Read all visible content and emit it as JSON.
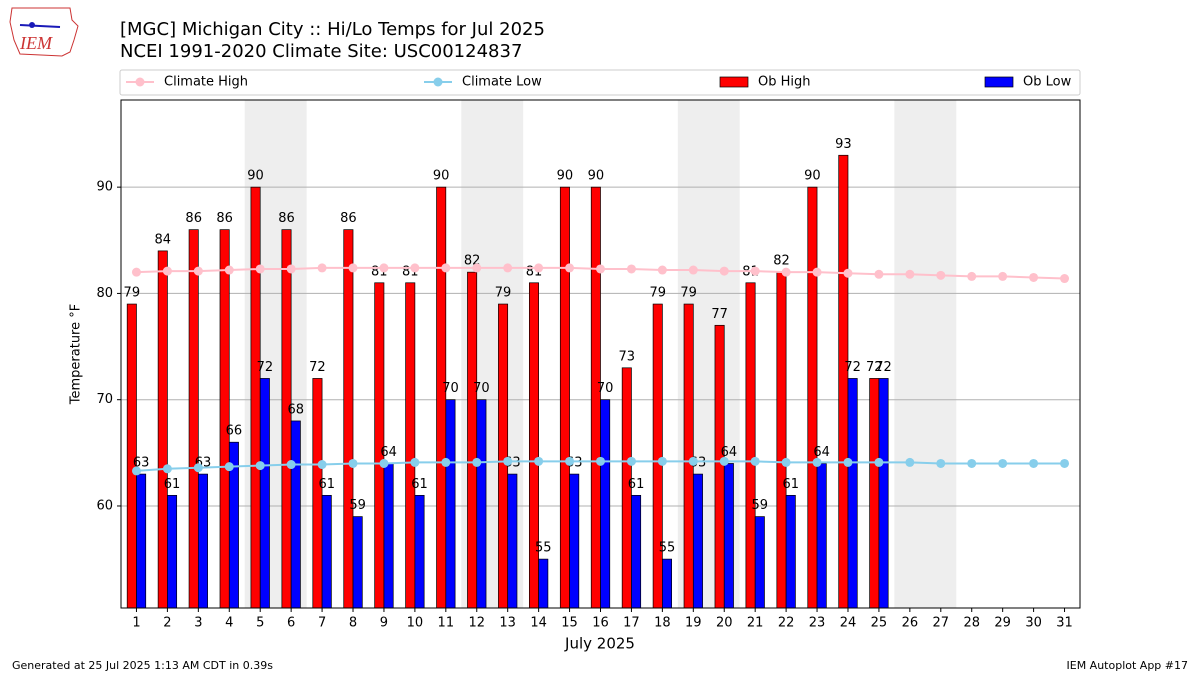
{
  "chart_data": {
    "type": "bar",
    "title": "[MGC] Michigan City :: Hi/Lo Temps for Jul 2025",
    "subtitle": "NCEI 1991-2020 Climate Site: USC00124837",
    "logo": "IEM",
    "xlabel": "July 2025",
    "ylabel": "Temperature °F",
    "footer_left": "Generated at 25 Jul 2025 1:13 AM CDT in 0.39s",
    "footer_right": "IEM Autoplot App #17",
    "x": [
      1,
      2,
      3,
      4,
      5,
      6,
      7,
      8,
      9,
      10,
      11,
      12,
      13,
      14,
      15,
      16,
      17,
      18,
      19,
      20,
      21,
      22,
      23,
      24,
      25,
      26,
      27,
      28,
      29,
      30,
      31
    ],
    "xlim": [
      0.5,
      31.5
    ],
    "xticks": [
      1,
      2,
      3,
      4,
      5,
      6,
      7,
      8,
      9,
      10,
      11,
      12,
      13,
      14,
      15,
      16,
      17,
      18,
      19,
      20,
      21,
      22,
      23,
      24,
      25,
      26,
      27,
      28,
      29,
      30,
      31
    ],
    "ylim": [
      50.4,
      98.2
    ],
    "yticks": [
      60,
      70,
      80,
      90
    ],
    "grid": true,
    "weekend_shading": [
      5,
      12,
      19,
      26
    ],
    "series": [
      {
        "name": "Climate High",
        "kind": "line",
        "color": "#ffc0cb",
        "values": [
          82.0,
          82.1,
          82.1,
          82.2,
          82.3,
          82.3,
          82.4,
          82.4,
          82.4,
          82.4,
          82.4,
          82.4,
          82.4,
          82.4,
          82.4,
          82.3,
          82.3,
          82.2,
          82.2,
          82.1,
          82.1,
          82.0,
          82.0,
          81.9,
          81.8,
          81.8,
          81.7,
          81.6,
          81.6,
          81.5,
          81.4
        ]
      },
      {
        "name": "Climate Low",
        "kind": "line",
        "color": "#87ceeb",
        "values": [
          63.3,
          63.5,
          63.6,
          63.7,
          63.8,
          63.9,
          63.9,
          64.0,
          64.0,
          64.1,
          64.1,
          64.1,
          64.2,
          64.2,
          64.2,
          64.2,
          64.2,
          64.2,
          64.2,
          64.2,
          64.2,
          64.1,
          64.1,
          64.1,
          64.1,
          64.1,
          64.0,
          64.0,
          64.0,
          64.0,
          64.0
        ]
      },
      {
        "name": "Ob High",
        "kind": "bar",
        "color": "#ff0000",
        "values": [
          79,
          84,
          86,
          86,
          90,
          86,
          72,
          86,
          81,
          81,
          90,
          82,
          79,
          81,
          90,
          90,
          73,
          79,
          79,
          77,
          81,
          82,
          90,
          93,
          72,
          null,
          null,
          null,
          null,
          null,
          null
        ]
      },
      {
        "name": "Ob Low",
        "kind": "bar",
        "color": "#0000ff",
        "values": [
          63,
          61,
          63,
          66,
          72,
          68,
          61,
          59,
          64,
          61,
          70,
          70,
          63,
          55,
          63,
          70,
          61,
          55,
          63,
          64,
          59,
          61,
          64,
          72,
          72,
          null,
          null,
          null,
          null,
          null,
          null
        ]
      }
    ]
  }
}
